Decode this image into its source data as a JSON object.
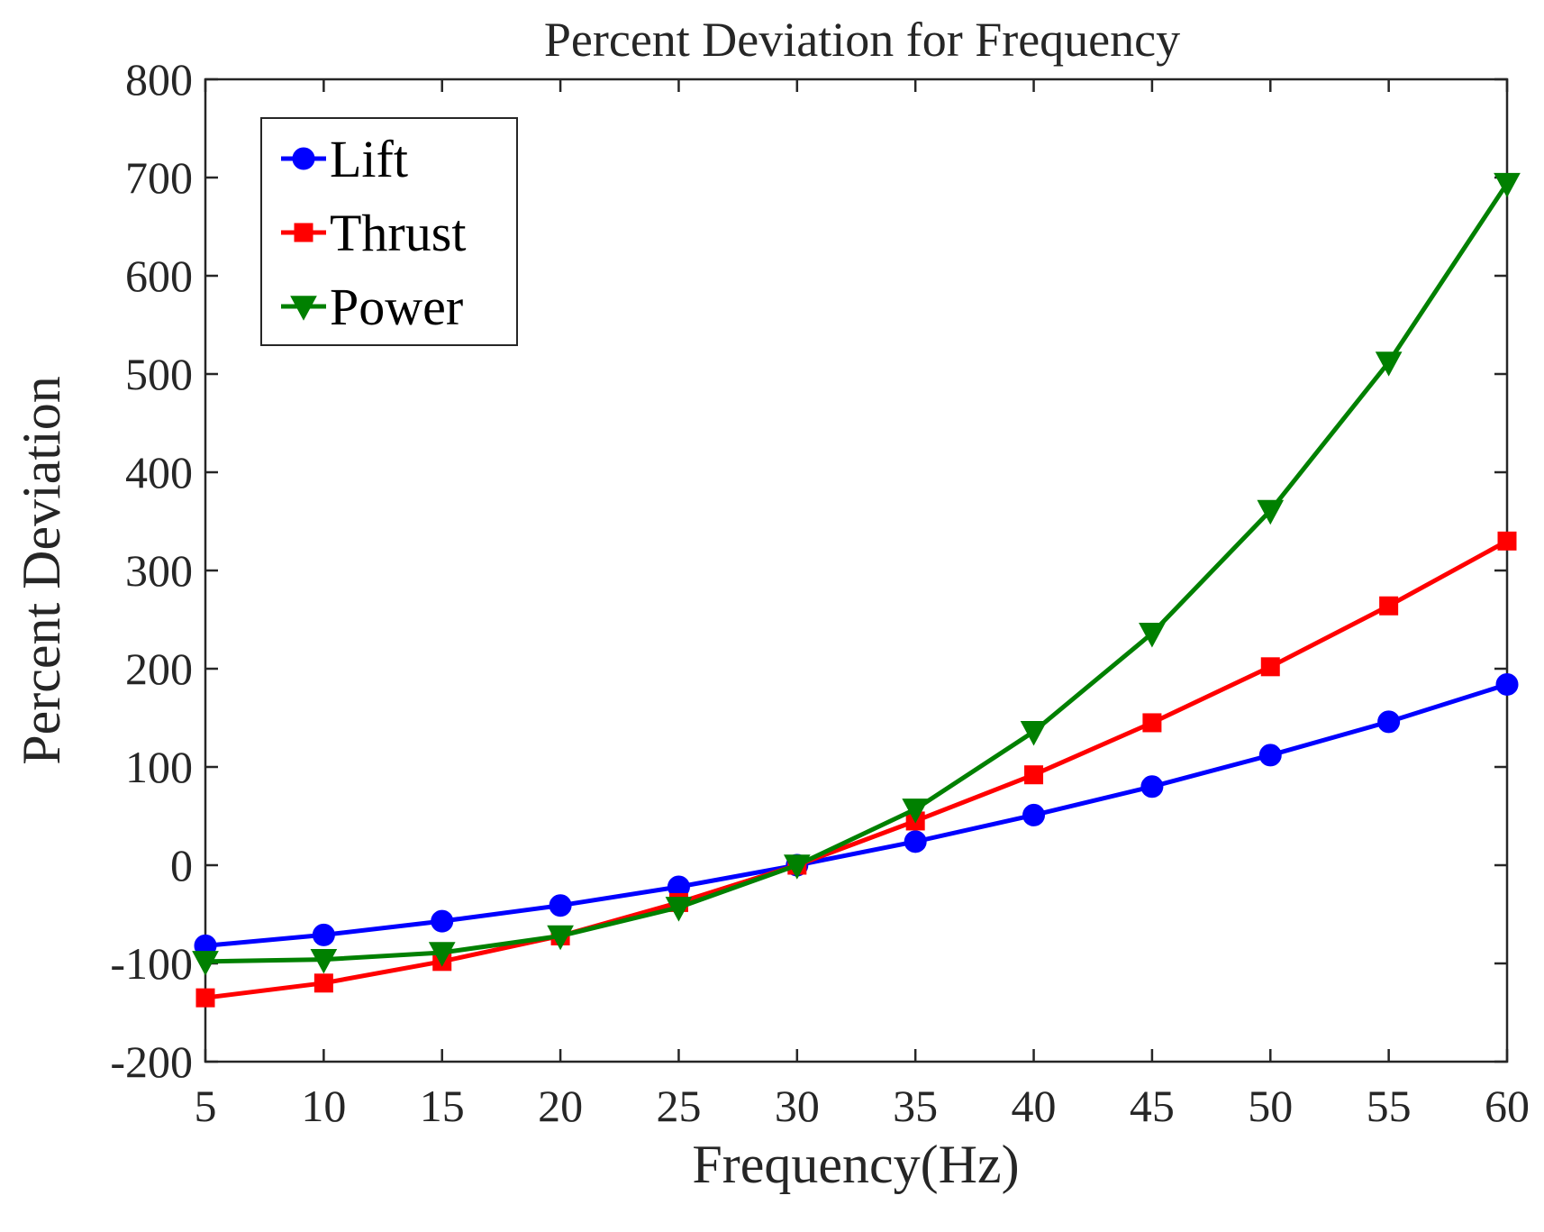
{
  "chart_data": {
    "type": "line",
    "title": "Percent Deviation for Frequency",
    "xlabel": "Frequency(Hz)",
    "ylabel": "Percent Deviation",
    "x": [
      5,
      10,
      15,
      20,
      25,
      30,
      35,
      40,
      45,
      50,
      55,
      60
    ],
    "xlim": [
      5,
      60
    ],
    "ylim": [
      -200,
      800
    ],
    "xticks": [
      5,
      10,
      15,
      20,
      25,
      30,
      35,
      40,
      45,
      50,
      55,
      60
    ],
    "yticks": [
      -200,
      -100,
      0,
      100,
      200,
      300,
      400,
      500,
      600,
      700,
      800
    ],
    "grid": false,
    "legend_position": "top-left",
    "series": [
      {
        "name": "Lift",
        "color": "#0000ff",
        "marker": "circle",
        "values": [
          -82,
          -71,
          -57,
          -41,
          -22,
          0,
          24,
          51,
          80,
          112,
          146,
          184
        ]
      },
      {
        "name": "Thrust",
        "color": "#ff0000",
        "marker": "square",
        "values": [
          -135,
          -120,
          -98,
          -72,
          -38,
          0,
          45,
          92,
          145,
          202,
          264,
          330
        ]
      },
      {
        "name": "Power",
        "color": "#008000",
        "marker": "triangle-down",
        "values": [
          -98,
          -96,
          -89,
          -72,
          -43,
          0,
          57,
          136,
          236,
          361,
          512,
          694
        ]
      }
    ]
  }
}
